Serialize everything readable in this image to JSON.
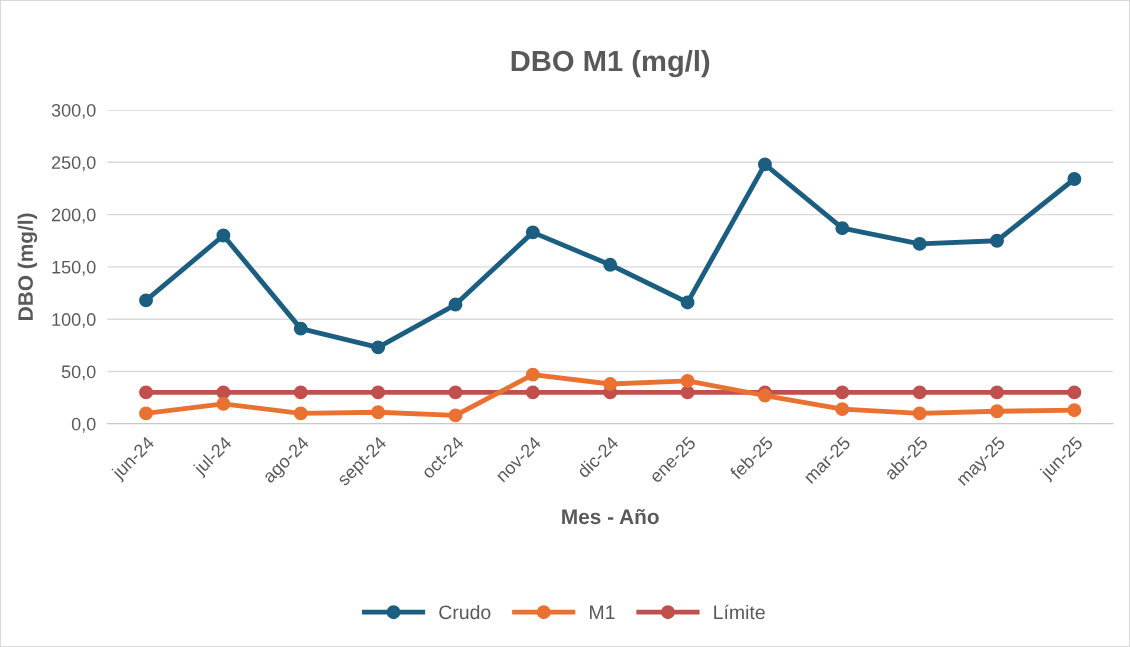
{
  "chart_data": {
    "type": "line",
    "title": "DBO M1 (mg/l)",
    "xlabel": "Mes - Año",
    "ylabel": "DBO (mg/l)",
    "categories": [
      "jun-24",
      "jul-24",
      "ago-24",
      "sept-24",
      "oct-24",
      "nov-24",
      "dic-24",
      "ene-25",
      "feb-25",
      "mar-25",
      "abr-25",
      "may-25",
      "jun-25"
    ],
    "series": [
      {
        "name": "Crudo",
        "color": "#1b5e80",
        "values": [
          118,
          180,
          91,
          73,
          114,
          183,
          152,
          116,
          248,
          187,
          172,
          175,
          234
        ]
      },
      {
        "name": "M1",
        "color": "#e97132",
        "values": [
          10,
          19,
          10,
          11,
          8,
          47,
          38,
          41,
          27,
          14,
          10,
          12,
          13
        ]
      },
      {
        "name": "Límite",
        "color": "#c0504d",
        "values": [
          30,
          30,
          30,
          30,
          30,
          30,
          30,
          30,
          30,
          30,
          30,
          30,
          30
        ]
      }
    ],
    "ylim": [
      0,
      300
    ],
    "yticks": [
      {
        "value": 0,
        "label": "0,0"
      },
      {
        "value": 50,
        "label": "50,0"
      },
      {
        "value": 100,
        "label": "100,0"
      },
      {
        "value": 150,
        "label": "150,0"
      },
      {
        "value": 200,
        "label": "200,0"
      },
      {
        "value": 250,
        "label": "250,0"
      },
      {
        "value": 300,
        "label": "300,0"
      }
    ],
    "grid": "y",
    "legend": "bottom",
    "marker": "circle",
    "line_style": "solid"
  }
}
